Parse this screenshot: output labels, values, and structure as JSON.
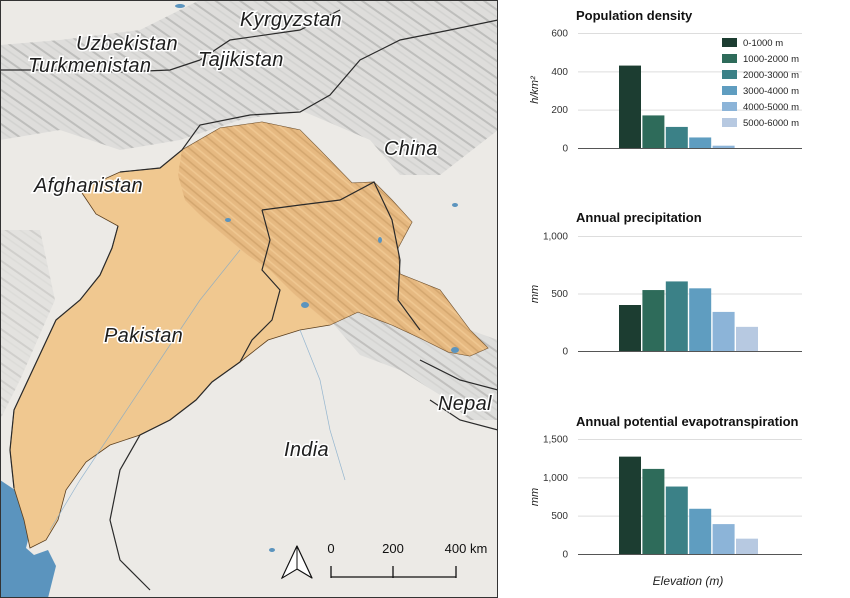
{
  "map": {
    "countries": {
      "kyrgyzstan": "Kyrgyzstan",
      "uzbekistan": "Uzbekistan",
      "tajikistan": "Tajikistan",
      "turkmenistan": "Turkmenistan",
      "china": "China",
      "afghanistan": "Afghanistan",
      "pakistan": "Pakistan",
      "india": "India",
      "nepal": "Nepal"
    },
    "scale_bar": {
      "ticks": [
        "0",
        "200",
        "400 km"
      ]
    },
    "north_arrow_icon": "north-arrow-icon",
    "colors": {
      "basin": "#f0c890",
      "land": "#ededeb",
      "sea": "#5b94be",
      "relief": "#c8c8c6",
      "border": "#2a2a2a"
    }
  },
  "legend": {
    "entries": [
      "0-1000 m",
      "1000-2000 m",
      "2000-3000 m",
      "3000-4000 m",
      "4000-5000 m",
      "5000-6000 m"
    ],
    "colors": [
      "#1c3d31",
      "#2e6b5a",
      "#3b8187",
      "#5f9dc0",
      "#8cb4d8",
      "#b7c9e1"
    ]
  },
  "shared_xlabel": "Elevation (m)",
  "chart_data": [
    {
      "type": "bar",
      "title": "Population density",
      "ylabel": "h/km²",
      "categories": [
        "0-1000 m",
        "1000-2000 m",
        "2000-3000 m",
        "3000-4000 m",
        "4000-5000 m",
        "5000-6000 m"
      ],
      "values": [
        430,
        170,
        110,
        55,
        12,
        0
      ],
      "ylim": [
        0,
        600
      ],
      "yticks": [
        0,
        200,
        400,
        600
      ],
      "ytick_labels": [
        "0",
        "200",
        "400",
        "600"
      ]
    },
    {
      "type": "bar",
      "title": "Annual precipitation",
      "ylabel": "mm",
      "categories": [
        "0-1000 m",
        "1000-2000 m",
        "2000-3000 m",
        "3000-4000 m",
        "4000-5000 m",
        "5000-6000 m"
      ],
      "values": [
        400,
        530,
        605,
        545,
        340,
        210
      ],
      "ylim": [
        0,
        1000
      ],
      "yticks": [
        0,
        500,
        1000
      ],
      "ytick_labels": [
        "0",
        "500",
        "1,000"
      ]
    },
    {
      "type": "bar",
      "title": "Annual potential evapotranspiration",
      "ylabel": "mm",
      "categories": [
        "0-1000 m",
        "1000-2000 m",
        "2000-3000 m",
        "3000-4000 m",
        "4000-5000 m",
        "5000-6000 m"
      ],
      "values": [
        1270,
        1110,
        880,
        590,
        390,
        200
      ],
      "ylim": [
        0,
        1500
      ],
      "yticks": [
        0,
        500,
        1000,
        1500
      ],
      "ytick_labels": [
        "0",
        "500",
        "1,000",
        "1,500"
      ]
    }
  ]
}
